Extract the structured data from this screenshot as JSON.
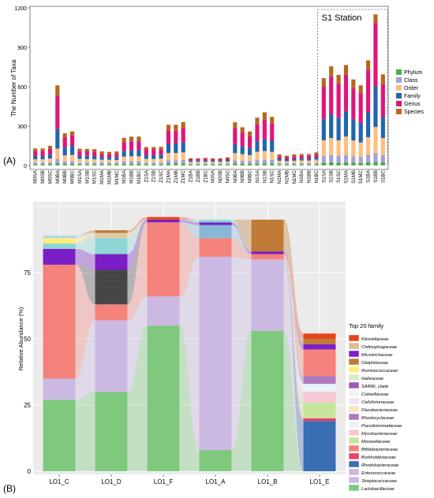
{
  "panels": [
    {
      "label": "(A)"
    },
    {
      "label": "(B)"
    }
  ],
  "chart_data": [
    {
      "type": "bar",
      "stacked": true,
      "ylabel": "The Number of Taxa",
      "ylim": [
        0,
        1200
      ],
      "yticks": [
        0,
        300,
        600,
        900,
        1200
      ],
      "grid": false,
      "legend_position": "right",
      "annotation": "S1 Station",
      "annotation_span": [
        "S1SA",
        "S1BC"
      ],
      "categories": [
        "M0SA",
        "M0SB",
        "M0SC",
        "M0BA",
        "M0BB",
        "M0BC",
        "M1SA",
        "M1SB",
        "M1SC",
        "M1MA",
        "M1MB",
        "M1MC",
        "M1BA",
        "M1BB",
        "M1BC",
        "Z1SA",
        "Z1SB",
        "Z1SC",
        "Z1MA",
        "Z1MB",
        "Z1MC",
        "Z1BA",
        "Z1BB",
        "Z1BC",
        "N0SA",
        "N0SB",
        "N0SC",
        "N0BA",
        "N0BB",
        "N0BC",
        "N1SA",
        "N1SB",
        "N1SC",
        "N1MA",
        "N1MB",
        "N1MC",
        "N1BA",
        "N1BB",
        "N1BC",
        "S1SA",
        "S1SB",
        "S1SC",
        "S1MA",
        "S1MB",
        "S1MC",
        "S1BA",
        "S1BB",
        "S1BC"
      ],
      "series": [
        {
          "name": "Phylum",
          "color": "#4daf4a",
          "values": [
            10,
            10,
            11,
            18,
            12,
            12,
            10,
            10,
            10,
            10,
            10,
            10,
            12,
            12,
            12,
            10,
            10,
            10,
            15,
            15,
            16,
            8,
            8,
            8,
            8,
            8,
            8,
            15,
            14,
            14,
            16,
            17,
            16,
            8,
            8,
            8,
            8,
            8,
            8,
            22,
            25,
            22,
            25,
            22,
            20,
            25,
            28,
            24
          ]
        },
        {
          "name": "Class",
          "color": "#a6a0d8",
          "values": [
            12,
            12,
            14,
            30,
            20,
            20,
            12,
            12,
            12,
            12,
            12,
            12,
            18,
            18,
            18,
            12,
            12,
            12,
            25,
            25,
            26,
            8,
            8,
            8,
            8,
            8,
            8,
            24,
            22,
            20,
            28,
            28,
            26,
            10,
            10,
            10,
            10,
            10,
            12,
            50,
            55,
            50,
            55,
            48,
            45,
            55,
            65,
            55
          ]
        },
        {
          "name": "Order",
          "color": "#fdbf7f",
          "values": [
            25,
            25,
            28,
            80,
            45,
            48,
            28,
            26,
            25,
            22,
            22,
            20,
            38,
            40,
            40,
            28,
            28,
            30,
            55,
            55,
            58,
            12,
            12,
            12,
            12,
            12,
            14,
            55,
            50,
            45,
            60,
            65,
            62,
            18,
            15,
            18,
            20,
            20,
            25,
            120,
            130,
            120,
            140,
            120,
            110,
            135,
            200,
            130
          ]
        },
        {
          "name": "Family",
          "color": "#2166ac",
          "values": [
            25,
            25,
            30,
            150,
            60,
            70,
            25,
            25,
            25,
            20,
            20,
            22,
            45,
            45,
            45,
            28,
            28,
            28,
            70,
            70,
            75,
            10,
            10,
            10,
            10,
            10,
            12,
            70,
            60,
            55,
            80,
            90,
            85,
            15,
            15,
            15,
            15,
            15,
            18,
            160,
            180,
            170,
            190,
            160,
            150,
            190,
            310,
            160
          ]
        },
        {
          "name": "Genus",
          "color": "#e0157a",
          "values": [
            40,
            40,
            45,
            250,
            80,
            80,
            35,
            35,
            35,
            25,
            22,
            25,
            65,
            70,
            70,
            45,
            45,
            45,
            100,
            100,
            110,
            10,
            10,
            12,
            10,
            10,
            12,
            120,
            105,
            90,
            130,
            150,
            130,
            20,
            15,
            20,
            20,
            20,
            20,
            245,
            290,
            260,
            280,
            240,
            225,
            320,
            480,
            250
          ]
        },
        {
          "name": "Species",
          "color": "#b8651b",
          "values": [
            18,
            18,
            22,
            82,
            28,
            30,
            18,
            18,
            18,
            18,
            18,
            18,
            32,
            35,
            35,
            17,
            17,
            17,
            45,
            45,
            45,
            7,
            7,
            8,
            7,
            7,
            8,
            45,
            40,
            35,
            50,
            55,
            51,
            14,
            12,
            14,
            14,
            14,
            17,
            68,
            75,
            68,
            75,
            65,
            60,
            75,
            67,
            75
          ]
        }
      ]
    },
    {
      "type": "area",
      "subtype": "stacked-alluvial-bar",
      "ylabel": "Relative Abundance (%)",
      "ylim": [
        0,
        100
      ],
      "yticks": [
        0,
        25,
        50,
        75
      ],
      "legend_title": "Top 20 family",
      "legend_position": "right",
      "categories": [
        "LO1_C",
        "LO1_D",
        "LO1_F",
        "LO1_A",
        "LO1_B",
        "LO1_E"
      ],
      "series": [
        {
          "name": "Lactobacillaceae",
          "color": "#7fc97f",
          "values": [
            27,
            30,
            55,
            8,
            53,
            0
          ]
        },
        {
          "name": "Streptococcaceae",
          "color": "#cbb8e3",
          "values": [
            8,
            27,
            11,
            73,
            27,
            0
          ]
        },
        {
          "name": "Enterococcaceae",
          "color": "#cdb5e0",
          "values": [
            0,
            0,
            0,
            0,
            0,
            0
          ]
        },
        {
          "name": "Rhodobacteraceae",
          "color": "#3a6fb5",
          "values": [
            0,
            0,
            0,
            0,
            0,
            19
          ]
        },
        {
          "name": "Burkholderiaceae",
          "color": "#e8406f",
          "values": [
            0,
            0,
            0,
            0,
            0,
            1
          ]
        },
        {
          "name": "Bifidobacteriaceae",
          "color": "#f4827a",
          "values": [
            43,
            6,
            28,
            7,
            2,
            10
          ]
        },
        {
          "name": "Moraxellaceae",
          "color": "#c7e59b",
          "values": [
            0,
            0,
            0,
            0,
            0,
            6
          ]
        },
        {
          "name": "Mycobacteriaceae",
          "color": "#f7c7d3",
          "values": [
            0,
            0,
            0,
            0,
            0,
            4
          ]
        },
        {
          "name": "Pseudomonadaceae",
          "color": "#e9f2f6",
          "values": [
            0,
            0,
            0,
            0,
            0,
            3
          ]
        },
        {
          "name": "Rhodocyclaceae",
          "color": "#b07abd",
          "values": [
            0,
            0,
            0,
            0,
            0,
            3
          ]
        },
        {
          "name": "Flavobacteriaceae",
          "color": "#fbe3c4",
          "values": [
            0,
            0,
            0,
            0,
            0,
            0
          ]
        },
        {
          "name": "Cellvibrionaceae",
          "color": "#f2e3f5",
          "values": [
            0,
            0,
            0,
            0,
            0,
            0
          ]
        },
        {
          "name": "Colwelliaceae",
          "color": "#f5f0f7",
          "values": [
            0,
            0,
            0,
            0,
            0,
            0
          ]
        },
        {
          "name": "SAR86_clade",
          "color": "#9b59b6",
          "values": [
            0,
            0,
            0,
            0,
            0,
            0
          ]
        },
        {
          "name": "Halieaceae",
          "color": "#d7ecc6",
          "values": [
            0,
            0,
            0,
            0,
            0,
            0
          ]
        },
        {
          "name": "Ruminococcaceae",
          "color": "#fdf07a",
          "values": [
            2,
            0,
            0,
            0,
            0,
            0
          ]
        },
        {
          "name": "Oleiphilaceae",
          "color": "#c07a36",
          "values": [
            0,
            1,
            0,
            0,
            12,
            2
          ]
        },
        {
          "name": "Microtrichaceae",
          "color": "#7a1fc7",
          "values": [
            6,
            6,
            1,
            1,
            1,
            2
          ]
        },
        {
          "name": "Chitinophagaceae",
          "color": "#d9bf8f",
          "values": [
            0,
            0,
            0,
            0,
            0,
            0
          ]
        },
        {
          "name": "Kiloniellaceae",
          "color": "#e8431c",
          "values": [
            0,
            0,
            1,
            0,
            0,
            2
          ]
        }
      ],
      "extra_segments_note": "",
      "extra_layers": [
        {
          "name": "Enterococcaceae_cyan",
          "color": "#8fd6d6",
          "values": [
            2,
            6,
            0,
            1,
            0,
            0
          ]
        },
        {
          "name": "Streptococcaceae_dark",
          "color": "#4a4a4a",
          "values": [
            0,
            13,
            0,
            0,
            0,
            0
          ]
        },
        {
          "name": "Bifidobacteriaceae_blue",
          "color": "#8ab6d9",
          "values": [
            0,
            0,
            0,
            5,
            0,
            0
          ]
        },
        {
          "name": "Flavobacteriaceae_beige",
          "color": "#ddc9a6",
          "values": [
            0,
            2,
            0,
            0,
            0,
            0
          ]
        },
        {
          "name": "Ruminococcaceae_lightblue",
          "color": "#b7d3ea",
          "values": [
            1,
            0,
            0,
            0,
            0,
            0
          ]
        }
      ]
    }
  ]
}
